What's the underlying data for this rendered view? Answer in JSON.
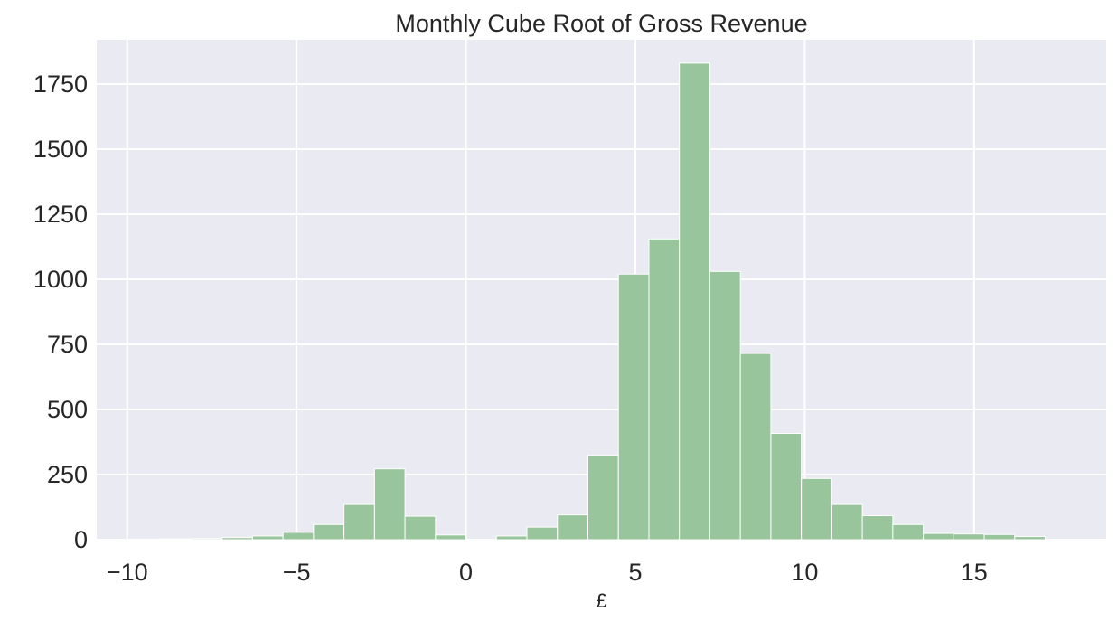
{
  "chart_data": {
    "type": "bar",
    "title": "Monthly Cube Root of Gross Revenue",
    "xlabel": "£",
    "ylabel": "",
    "xlim": [
      -10.9,
      18.9
    ],
    "ylim": [
      0,
      1920
    ],
    "xticks": [
      -10,
      -5,
      0,
      5,
      10,
      15
    ],
    "xtick_labels": [
      "−10",
      "−5",
      "0",
      "5",
      "10",
      "15"
    ],
    "yticks": [
      0,
      250,
      500,
      750,
      1000,
      1250,
      1500,
      1750
    ],
    "ytick_labels": [
      "0",
      "250",
      "500",
      "750",
      "1000",
      "1250",
      "1500",
      "1750"
    ],
    "grid": true,
    "bin_edges": [
      -9.9,
      -9.0,
      -8.1,
      -7.2,
      -6.3,
      -5.4,
      -4.5,
      -3.6,
      -2.7,
      -1.8,
      -0.9,
      0.0,
      0.9,
      1.8,
      2.7,
      3.6,
      4.5,
      5.4,
      6.3,
      7.2,
      8.1,
      9.0,
      9.9,
      10.8,
      11.7,
      12.6,
      13.5,
      14.4,
      15.3,
      16.2,
      17.1,
      18.0
    ],
    "counts": [
      2,
      3,
      4,
      8,
      14,
      28,
      58,
      135,
      272,
      90,
      18,
      0,
      14,
      48,
      95,
      325,
      1020,
      1155,
      1830,
      1030,
      715,
      408,
      235,
      135,
      92,
      58,
      24,
      22,
      20,
      12,
      0
    ],
    "bar_color": "#98c59b",
    "background_color": "#eaeaf2",
    "grid_color": "#ffffff"
  }
}
